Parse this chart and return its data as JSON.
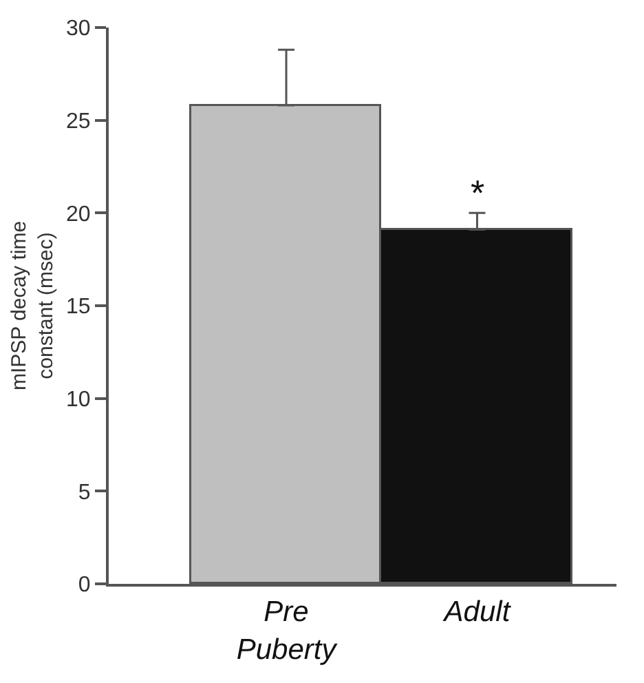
{
  "chart_data": {
    "type": "bar",
    "ylabel": "mIPSP decay time\nconstant (msec)",
    "categories": [
      "Pre\nPuberty",
      "Adult"
    ],
    "values": [
      25.8,
      19.1
    ],
    "colors": [
      "#bfbfbf",
      "#111111"
    ],
    "errors": [
      [
        25.8,
        28.8
      ],
      [
        19.1,
        20.0
      ]
    ],
    "ylim": [
      0,
      30
    ],
    "yticks": [
      0,
      5,
      10,
      15,
      20,
      25,
      30
    ],
    "legend": false,
    "annotations": [
      "*"
    ]
  }
}
